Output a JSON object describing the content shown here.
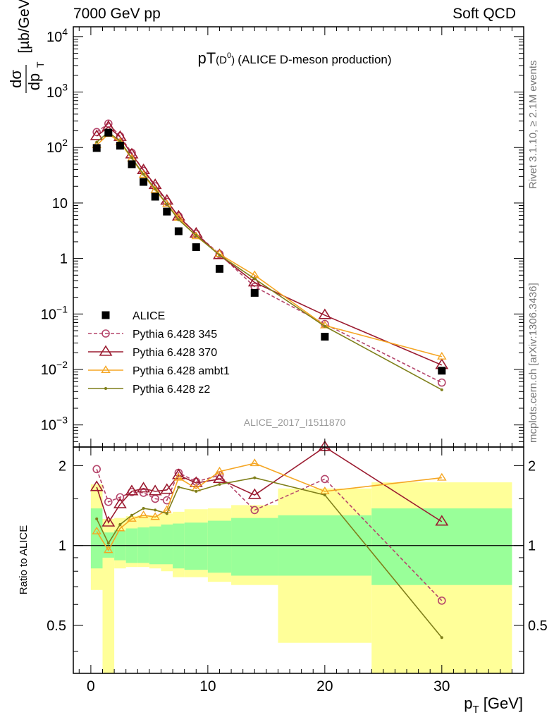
{
  "header": {
    "left": "7000 GeV pp",
    "right": "Soft QCD"
  },
  "side_labels": {
    "rivet": "Rivet 3.1.10, ≥ 2.1M events",
    "mcplots": "mcplots.cern.ch [arXiv:1306.3436]"
  },
  "colors": {
    "ALICE": "#000000",
    "p345": "#b5456b",
    "p370": "#9b1b30",
    "ambt1": "#f5a623",
    "z2": "#7f7f1a",
    "band_inner": "#99ff99",
    "band_outer": "#ffff99",
    "axes": "#000000"
  },
  "chart_data": [
    {
      "type": "line",
      "title_main": "pT",
      "title_sub": "(D",
      "title_sup": "0",
      "title_close": ")",
      "title_rest": "(ALICE D-meson production)",
      "watermark": "ALICE_2017_I1511870",
      "ylabel_top": "dσ",
      "ylabel_bottom": "dp",
      "ylabel_sub": "T",
      "ylabel_unit": "[µb/GeV]",
      "yscale": "log",
      "ylim": [
        0.0004,
        15000
      ],
      "xlim": [
        -1.5,
        37
      ],
      "y_tick_labels": [
        {
          "v": 0.001,
          "base": "10",
          "exp": "−3"
        },
        {
          "v": 0.01,
          "base": "10",
          "exp": "−2"
        },
        {
          "v": 0.1,
          "base": "10",
          "exp": "−1"
        },
        {
          "v": 1,
          "base": "1",
          "exp": ""
        },
        {
          "v": 10,
          "base": "10",
          "exp": ""
        },
        {
          "v": 100,
          "base": "10",
          "exp": "2"
        },
        {
          "v": 1000,
          "base": "10",
          "exp": "3"
        },
        {
          "v": 10000,
          "base": "10",
          "exp": "4"
        }
      ],
      "legend_placement": "bottom-left",
      "series": [
        {
          "name": "ALICE",
          "style": "data",
          "x": [
            0.5,
            1.5,
            2.5,
            3.5,
            4.5,
            5.5,
            6.5,
            7.5,
            9,
            11,
            14,
            20,
            30
          ],
          "y": [
            98,
            185,
            108,
            50,
            24,
            13,
            7,
            3.1,
            1.6,
            0.65,
            0.24,
            0.039,
            0.0095
          ]
        },
        {
          "name": "Pythia 6.428 345",
          "style": "dashed-circle",
          "x": [
            0.5,
            1.5,
            2.5,
            3.5,
            4.5,
            5.5,
            6.5,
            7.5,
            9,
            11,
            14,
            20,
            30
          ],
          "y": [
            190,
            270,
            160,
            80,
            38,
            20,
            10.5,
            5.8,
            2.8,
            1.2,
            0.31,
            0.066,
            0.0058
          ]
        },
        {
          "name": "Pythia 6.428 370",
          "style": "solid-triangle",
          "x": [
            0.5,
            1.5,
            2.5,
            3.5,
            4.5,
            5.5,
            6.5,
            7.5,
            9,
            11,
            14,
            20,
            30
          ],
          "y": [
            160,
            235,
            155,
            75,
            39,
            21,
            11,
            5.7,
            2.8,
            1.15,
            0.37,
            0.095,
            0.012
          ]
        },
        {
          "name": "Pythia 6.428 ambt1",
          "style": "solid-small-triangle",
          "x": [
            0.5,
            1.5,
            2.5,
            3.5,
            4.5,
            5.5,
            6.5,
            7.5,
            9,
            11,
            14,
            20,
            30
          ],
          "y": [
            110,
            175,
            125,
            63,
            32,
            17,
            9.5,
            5.4,
            2.5,
            1.2,
            0.5,
            0.062,
            0.017
          ]
        },
        {
          "name": "Pythia 6.428 z2",
          "style": "solid-dot",
          "x": [
            0.5,
            1.5,
            2.5,
            3.5,
            4.5,
            5.5,
            6.5,
            7.5,
            9,
            11,
            14,
            20,
            30
          ],
          "y": [
            125,
            190,
            130,
            65,
            33,
            18,
            9.5,
            5.0,
            2.6,
            1.15,
            0.43,
            0.06,
            0.0043
          ]
        }
      ]
    },
    {
      "type": "line",
      "ylabel": "Ratio to ALICE",
      "xlabel_main": "p",
      "xlabel_sub": "T",
      "xlabel_unit": "[GeV]",
      "yscale": "log",
      "ylim": [
        0.33,
        2.35
      ],
      "xlim": [
        -1.5,
        37
      ],
      "x_tick_labels": [
        "0",
        "10",
        "20",
        "30"
      ],
      "x_tick_values": [
        0,
        10,
        20,
        30
      ],
      "y_tick_labels": [
        {
          "v": 0.5,
          "t": "0.5"
        },
        {
          "v": 1,
          "t": "1"
        },
        {
          "v": 2,
          "t": "2"
        }
      ],
      "bins": [
        [
          0,
          1
        ],
        [
          1,
          2
        ],
        [
          2,
          3
        ],
        [
          3,
          4
        ],
        [
          4,
          5
        ],
        [
          5,
          6
        ],
        [
          6,
          7
        ],
        [
          7,
          8
        ],
        [
          8,
          10
        ],
        [
          10,
          12
        ],
        [
          12,
          16
        ],
        [
          16,
          24
        ],
        [
          24,
          36
        ]
      ],
      "band_inner": [
        [
          0.82,
          1.38
        ],
        [
          0.9,
          1.12
        ],
        [
          0.88,
          1.14
        ],
        [
          0.86,
          1.16
        ],
        [
          0.86,
          1.17
        ],
        [
          0.85,
          1.18
        ],
        [
          0.85,
          1.2
        ],
        [
          0.82,
          1.21
        ],
        [
          0.81,
          1.22
        ],
        [
          0.79,
          1.24
        ],
        [
          0.77,
          1.27
        ],
        [
          0.77,
          1.3
        ],
        [
          0.71,
          1.38
        ]
      ],
      "band_outer": [
        [
          0.68,
          1.7
        ],
        [
          0.32,
          1.26
        ],
        [
          0.82,
          1.27
        ],
        [
          0.83,
          1.29
        ],
        [
          0.83,
          1.3
        ],
        [
          0.82,
          1.3
        ],
        [
          0.8,
          1.32
        ],
        [
          0.76,
          1.34
        ],
        [
          0.76,
          1.37
        ],
        [
          0.73,
          1.38
        ],
        [
          0.71,
          1.42
        ],
        [
          0.43,
          1.64
        ],
        [
          0.33,
          1.73
        ]
      ],
      "series": [
        {
          "name": "Pythia 6.428 345",
          "style": "dashed-circle",
          "x": [
            0.5,
            1.5,
            2.5,
            3.5,
            4.5,
            5.5,
            6.5,
            7.5,
            9,
            11,
            14,
            20,
            30
          ],
          "y": [
            1.94,
            1.46,
            1.52,
            1.59,
            1.58,
            1.5,
            1.48,
            1.88,
            1.74,
            1.84,
            1.36,
            1.78,
            0.62
          ]
        },
        {
          "name": "Pythia 6.428 370",
          "style": "solid-triangle",
          "x": [
            0.5,
            1.5,
            2.5,
            3.5,
            4.5,
            5.5,
            6.5,
            7.5,
            9,
            11,
            14,
            20,
            30
          ],
          "y": [
            1.66,
            1.22,
            1.43,
            1.6,
            1.64,
            1.6,
            1.62,
            1.84,
            1.72,
            1.78,
            1.55,
            2.38,
            1.23
          ]
        },
        {
          "name": "Pythia 6.428 ambt1",
          "style": "solid-small-triangle",
          "x": [
            0.5,
            1.5,
            2.5,
            3.5,
            4.5,
            5.5,
            6.5,
            7.5,
            9,
            11,
            14,
            20,
            30
          ],
          "y": [
            1.13,
            0.96,
            1.16,
            1.26,
            1.3,
            1.28,
            1.36,
            1.8,
            1.64,
            1.9,
            2.04,
            1.6,
            1.8
          ]
        },
        {
          "name": "Pythia 6.428 z2",
          "style": "solid-dot",
          "x": [
            0.5,
            1.5,
            2.5,
            3.5,
            4.5,
            5.5,
            6.5,
            7.5,
            9,
            11,
            14,
            20,
            30
          ],
          "y": [
            1.26,
            1.02,
            1.2,
            1.3,
            1.38,
            1.36,
            1.32,
            1.66,
            1.6,
            1.7,
            1.8,
            1.55,
            0.45
          ]
        }
      ]
    }
  ]
}
